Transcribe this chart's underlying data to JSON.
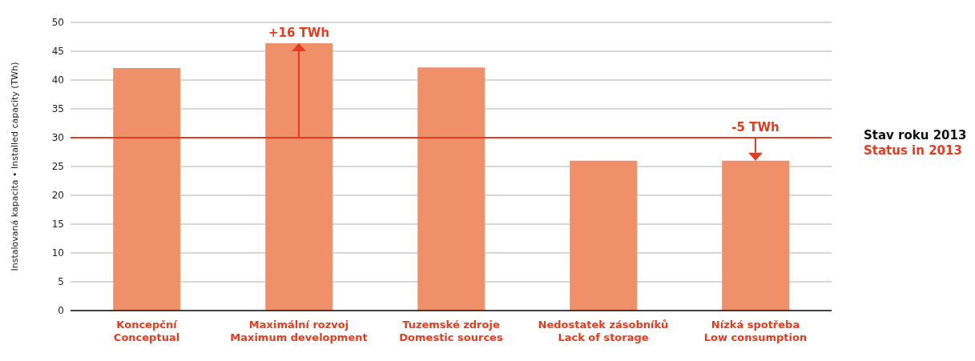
{
  "chart_data": {
    "type": "bar",
    "ylabel": "Instalovaná kapacita • Installed capacity (TWh)",
    "categories": [
      "Koncepční\nConceptual",
      "Maximální rozvoj\nMaximum development",
      "Tuzemské zdroje\nDomestic sources",
      "Nedostatek zásobníků\nLack of storage",
      "Nízká spotřeba\nLow consumption"
    ],
    "values": [
      42.1,
      46.4,
      42.2,
      26,
      26
    ],
    "color": "#f0906a",
    "ylim": [
      0,
      50
    ],
    "yticks": [
      0,
      5,
      10,
      15,
      20,
      25,
      30,
      35,
      40,
      45,
      50
    ],
    "grid": "y",
    "ref_lines": [
      {
        "axis": "y",
        "value": 30,
        "label": "Stav roku 2013\nStatus in 2013",
        "color": "#e63b1e"
      }
    ],
    "annotations": [
      {
        "text": "+16 TWh",
        "x": "Maximální rozvoj\nMaximum development",
        "y": 46.4
      },
      {
        "text": "-5 TWh",
        "x": "Nízká spotřeba\nLow consumption",
        "y": 26
      }
    ]
  }
}
